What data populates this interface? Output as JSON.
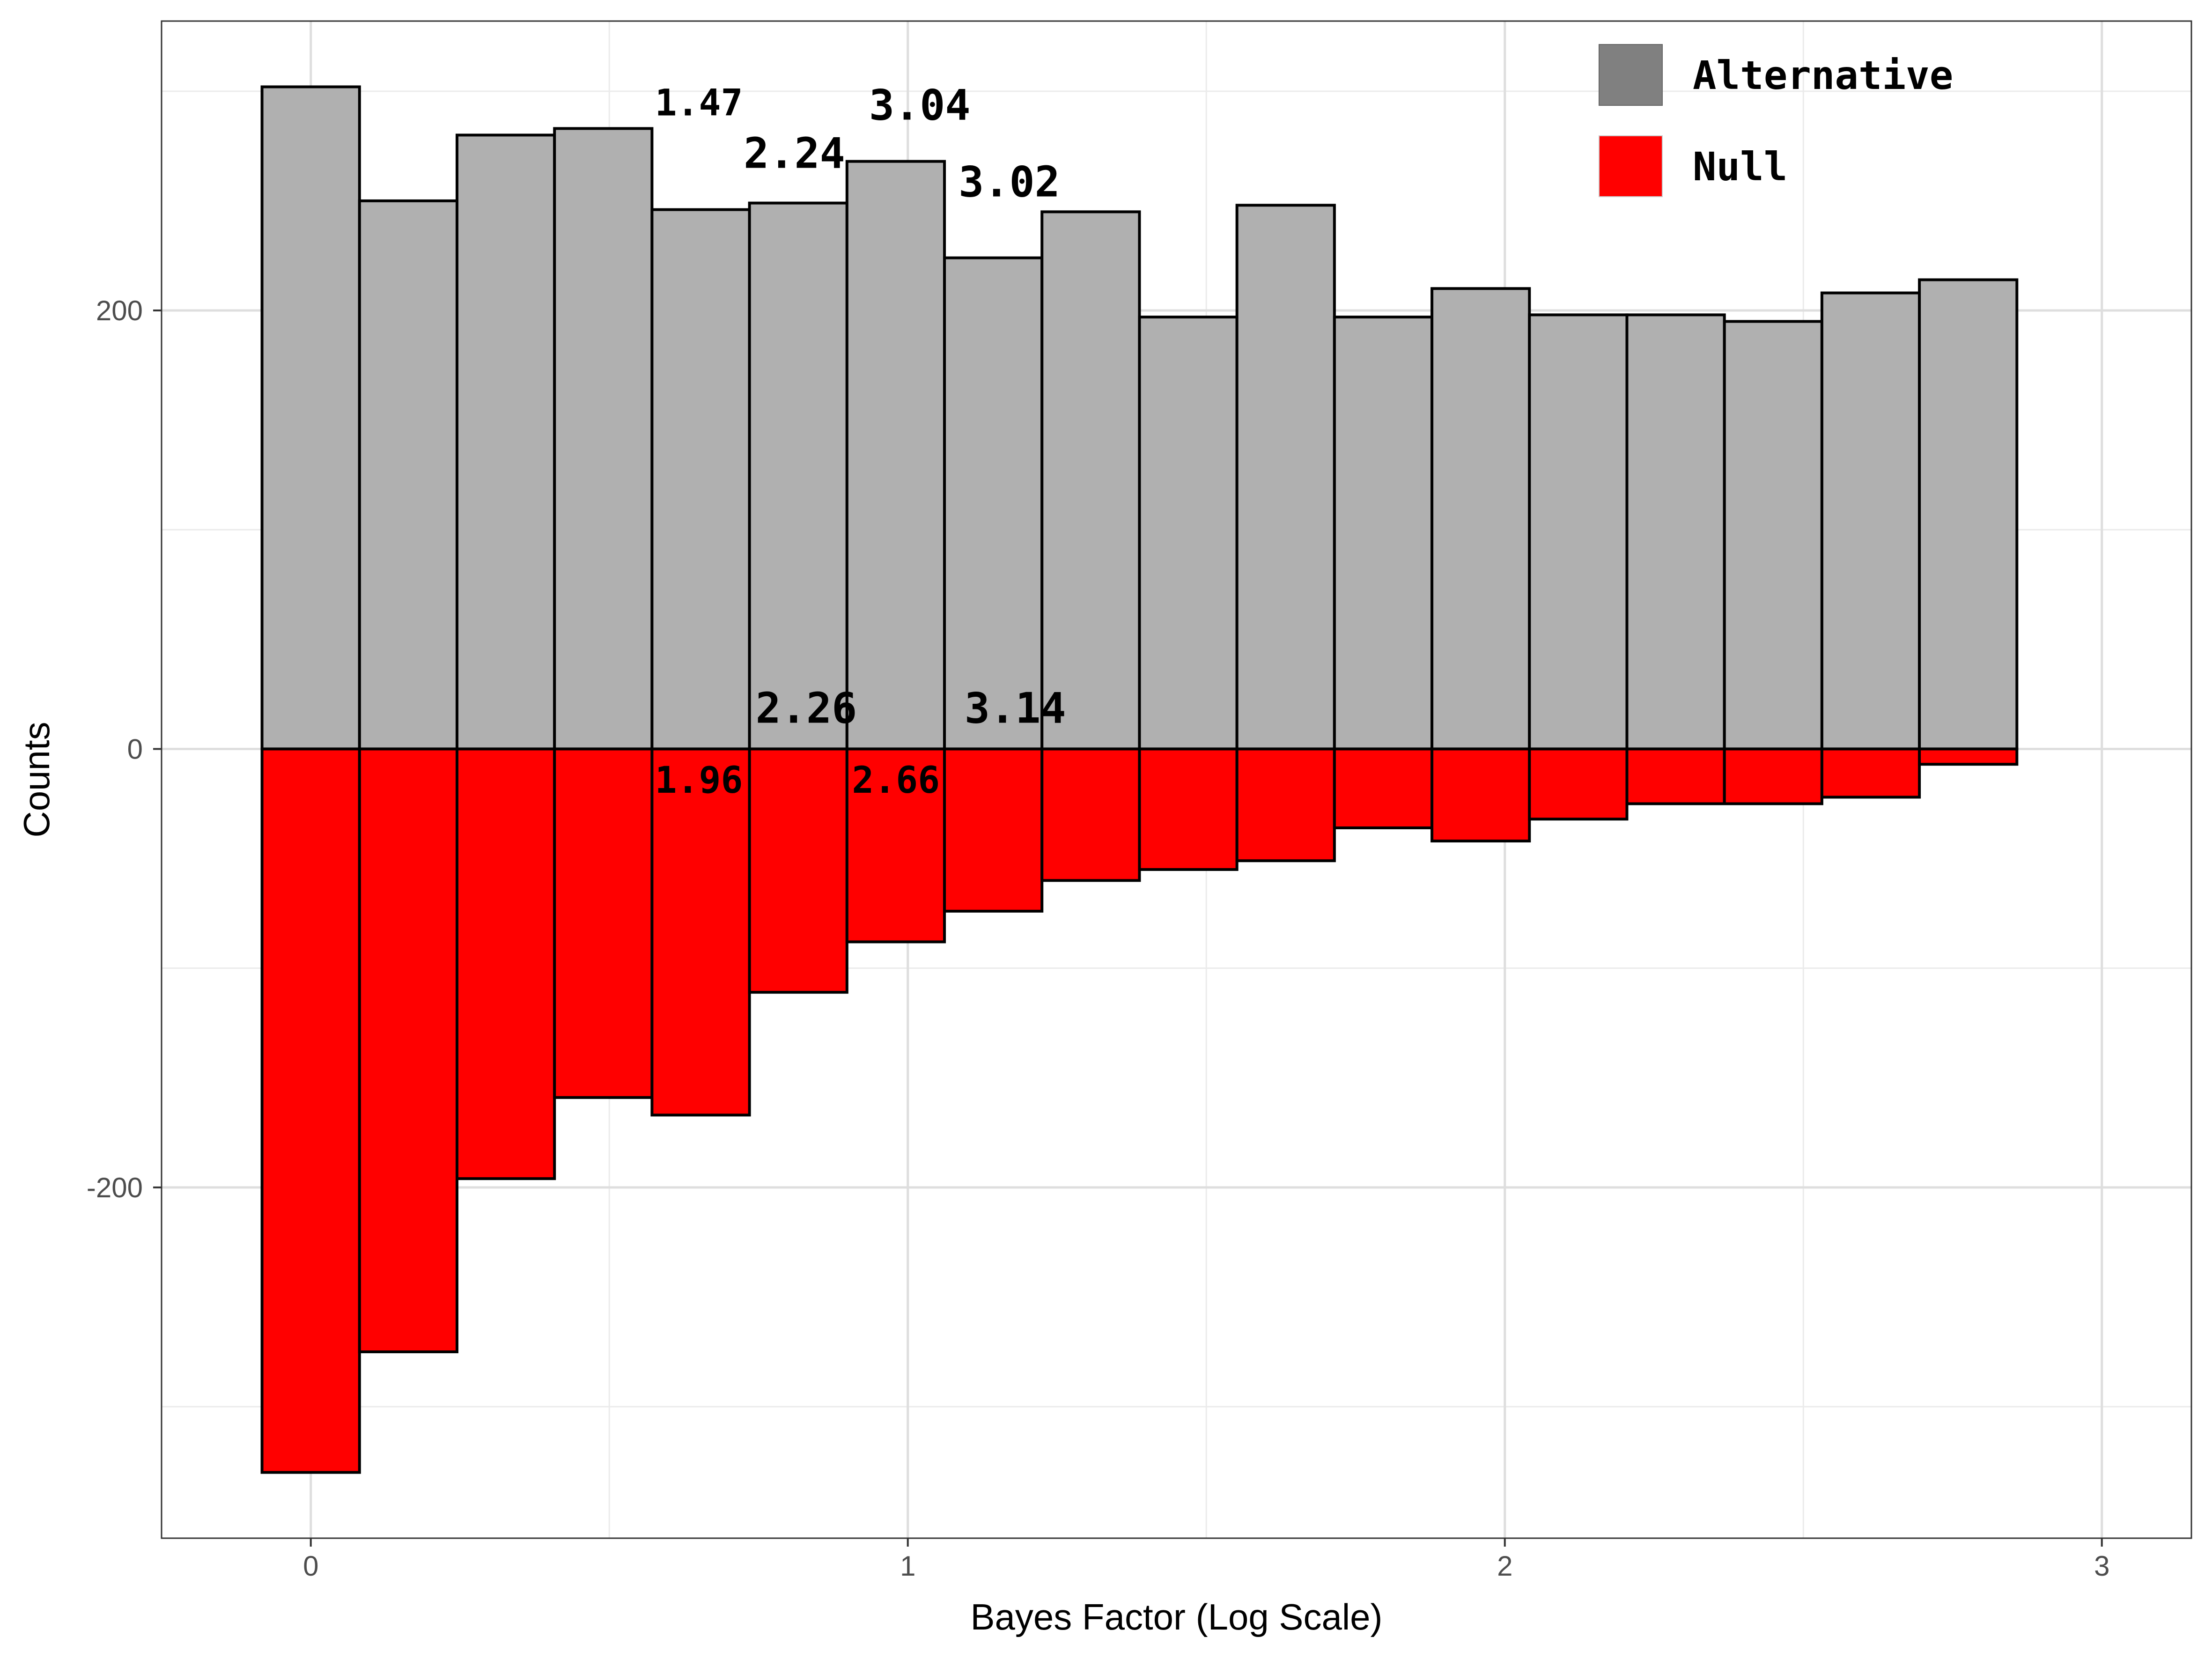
{
  "chart_data": {
    "type": "bar",
    "xlabel": "Bayes Factor (Log Scale)",
    "ylabel": "Counts",
    "xlim": [
      -0.25,
      3.15
    ],
    "ylim": [
      -360,
      332
    ],
    "xticks": [
      0,
      1,
      2,
      3
    ],
    "xtick_labels": [
      "0",
      "1",
      "2",
      "3"
    ],
    "yticks": [
      -200,
      0,
      200
    ],
    "ytick_labels": [
      "-200",
      "0",
      "200"
    ],
    "grid": true,
    "legend_position": "top-right",
    "bin_width": 0.1633,
    "bin_start": -0.0817,
    "series": [
      {
        "name": "Alternative",
        "legend_color": "#808080",
        "fill": "#b0b0b0",
        "values": [
          302,
          250,
          280,
          283,
          246,
          249,
          268,
          224,
          245,
          197,
          248,
          197,
          210,
          198,
          198,
          195,
          208,
          214
        ]
      },
      {
        "name": "Null",
        "legend_color": "#ff0000",
        "fill": "#ff0000",
        "values": [
          -330,
          -275,
          -196,
          -159,
          -167,
          -111,
          -88,
          -74,
          -60,
          -55,
          -51,
          -36,
          -42,
          -32,
          -25,
          -25,
          -22,
          -7
        ]
      }
    ],
    "annotations": [
      {
        "text": "1.47",
        "x": 0.65,
        "y": 289,
        "size": "normal"
      },
      {
        "text": "2.24",
        "x": 0.81,
        "y": 265,
        "size": "large"
      },
      {
        "text": "3.04",
        "x": 1.02,
        "y": 287,
        "size": "large"
      },
      {
        "text": "3.02",
        "x": 1.17,
        "y": 252,
        "size": "large"
      },
      {
        "text": "2.26",
        "x": 0.83,
        "y": 12,
        "size": "large"
      },
      {
        "text": "3.14",
        "x": 1.18,
        "y": 12,
        "size": "large"
      },
      {
        "text": "1.96",
        "x": 0.65,
        "y": -20,
        "size": "normal"
      },
      {
        "text": "2.66",
        "x": 0.98,
        "y": -20,
        "size": "normal"
      }
    ]
  }
}
